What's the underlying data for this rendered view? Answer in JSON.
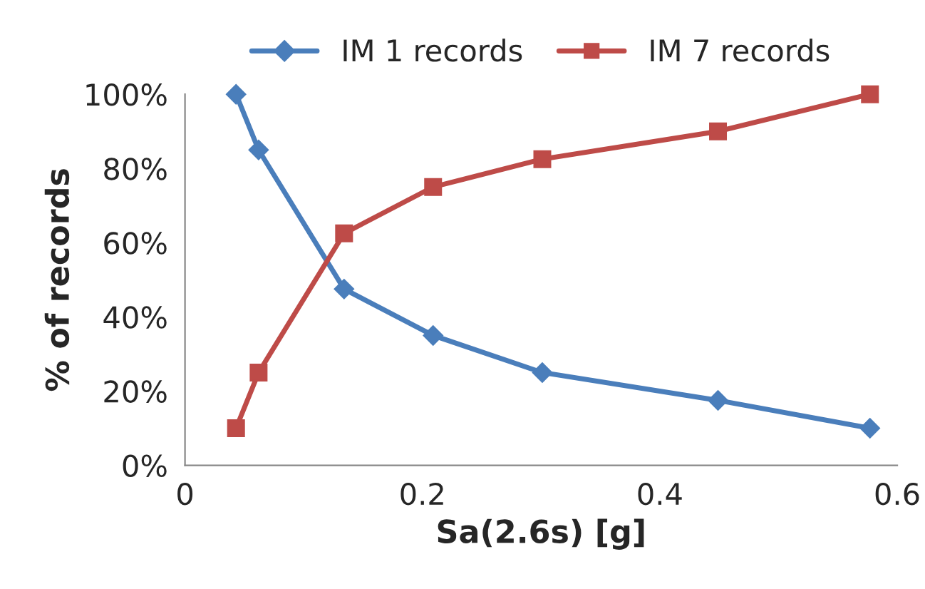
{
  "chart_data": {
    "type": "line",
    "xlabel": "Sa(2.6s) [g]",
    "ylabel": "% of records",
    "xlim": [
      0,
      0.6
    ],
    "xticks": [
      0,
      0.2,
      0.4,
      0.6
    ],
    "ylim": [
      0,
      100
    ],
    "yticks": [
      {
        "value": 0,
        "label": "0%"
      },
      {
        "value": 20,
        "label": "20%"
      },
      {
        "value": 40,
        "label": "40%"
      },
      {
        "value": 60,
        "label": "60%"
      },
      {
        "value": 80,
        "label": "80%"
      },
      {
        "value": 100,
        "label": "100%"
      }
    ],
    "x": [
      0.043,
      0.062,
      0.134,
      0.209,
      0.301,
      0.449,
      0.577
    ],
    "series": [
      {
        "name": "IM 1 records",
        "color": "#4a7ebb",
        "marker": "diamond",
        "values": [
          100,
          85,
          47.5,
          35,
          25,
          17.5,
          10
        ]
      },
      {
        "name": "IM 7 records",
        "color": "#be4b48",
        "marker": "square",
        "values": [
          10,
          25,
          62.5,
          75,
          82.5,
          90,
          100
        ]
      }
    ],
    "grid": false,
    "legend": "top",
    "line_style": "solid"
  }
}
